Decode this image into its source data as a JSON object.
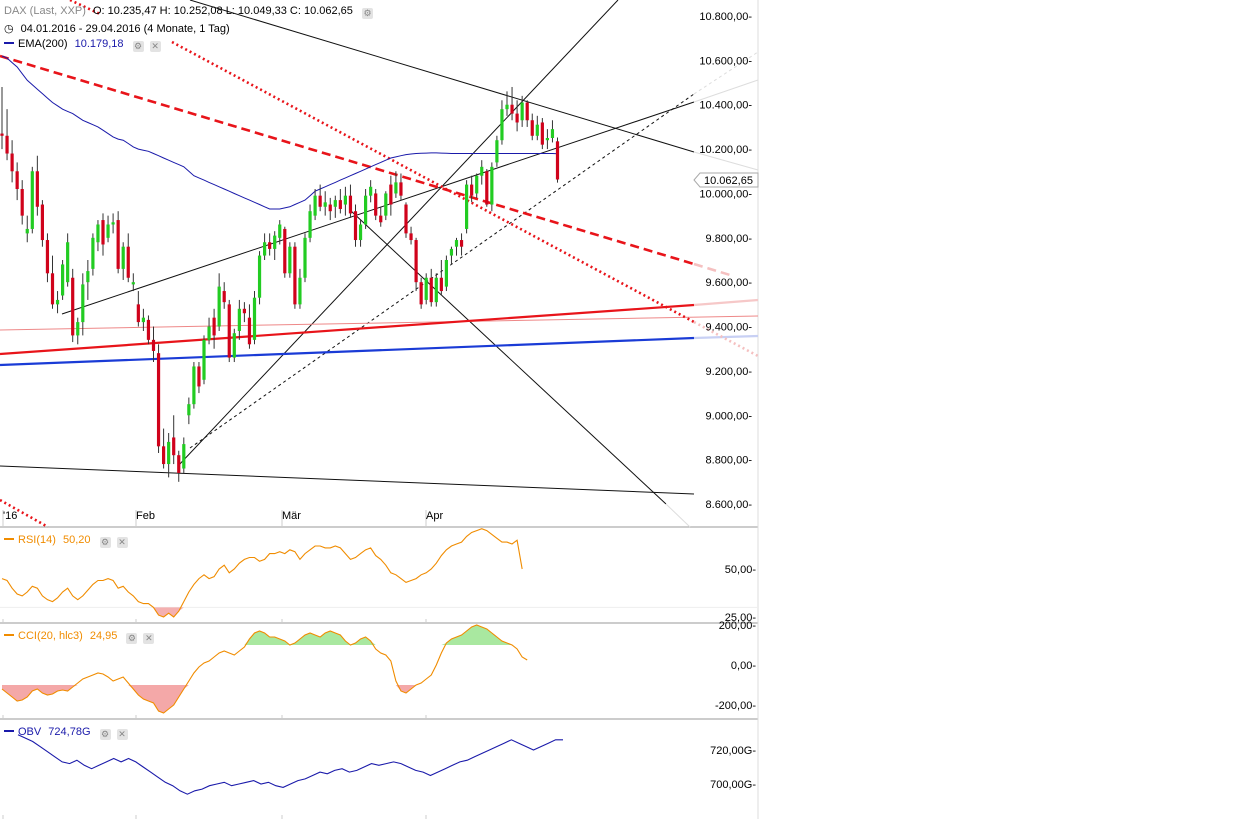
{
  "header": {
    "instrument": "DAX (Last, XXP)",
    "ohlc": "O: 10.235,47  H: 10.252,08  L: 10.049,33  C: 10.062,65",
    "range": "04.01.2016 - 29.04.2016 (4 Monate, 1 Tag)",
    "ema_label": "EMA(200)",
    "ema_value": "10.179,18",
    "last_price_label": "10.062,65"
  },
  "indicators": {
    "rsi": {
      "label": "RSI(14)",
      "value": "50,20"
    },
    "cci": {
      "label": "CCI(20, hlc3)",
      "value": "24,95"
    },
    "obv": {
      "label": "OBV",
      "value": "724,78G"
    }
  },
  "colors": {
    "up": "#22cc22",
    "down": "#d0021b",
    "ema": "#1a1aaa",
    "rsi": "#f08c00",
    "cci": "#f08c00",
    "obv": "#1a1aaa",
    "trend_red": "#e8141a",
    "trend_blue": "#1a3bd6"
  },
  "chart_data": [
    {
      "type": "candlestick",
      "x_ticks": [
        "'16",
        "Feb",
        "Mär",
        "Apr"
      ],
      "y_ticks": [
        "10.800,00",
        "10.600,00",
        "10.400,00",
        "10.200,00",
        "10.000,00",
        "9.800,00",
        "9.600,00",
        "9.400,00",
        "9.200,00",
        "9.000,00",
        "8.800,00",
        "8.600,00"
      ],
      "ylim": [
        8530,
        10870
      ],
      "candles": [
        [
          10270,
          10480,
          10200,
          10260
        ],
        [
          10260,
          10380,
          10150,
          10180
        ],
        [
          10180,
          10240,
          10050,
          10100
        ],
        [
          10100,
          10140,
          9970,
          10020
        ],
        [
          10020,
          10060,
          9860,
          9900
        ],
        [
          9820,
          9900,
          9780,
          9840
        ],
        [
          9840,
          10120,
          9820,
          10100
        ],
        [
          10100,
          10170,
          9900,
          9940
        ],
        [
          9950,
          9970,
          9760,
          9790
        ],
        [
          9790,
          9820,
          9600,
          9640
        ],
        [
          9640,
          9720,
          9480,
          9500
        ],
        [
          9500,
          9560,
          9460,
          9520
        ],
        [
          9540,
          9700,
          9520,
          9680
        ],
        [
          9600,
          9820,
          9580,
          9780
        ],
        [
          9620,
          9660,
          9330,
          9360
        ],
        [
          9360,
          9440,
          9320,
          9420
        ],
        [
          9420,
          9640,
          9360,
          9590
        ],
        [
          9600,
          9700,
          9520,
          9650
        ],
        [
          9660,
          9820,
          9630,
          9800
        ],
        [
          9780,
          9880,
          9740,
          9860
        ],
        [
          9880,
          9910,
          9720,
          9770
        ],
        [
          9800,
          9900,
          9780,
          9860
        ],
        [
          9860,
          9910,
          9820,
          9870
        ],
        [
          9880,
          9920,
          9640,
          9660
        ],
        [
          9660,
          9780,
          9610,
          9760
        ],
        [
          9760,
          9820,
          9600,
          9620
        ],
        [
          9590,
          9640,
          9560,
          9600
        ],
        [
          9500,
          9560,
          9400,
          9420
        ],
        [
          9420,
          9480,
          9380,
          9440
        ],
        [
          9430,
          9450,
          9320,
          9340
        ],
        [
          9340,
          9400,
          9240,
          9290
        ],
        [
          9280,
          9320,
          8830,
          8860
        ],
        [
          8860,
          8940,
          8760,
          8780
        ],
        [
          8780,
          8920,
          8720,
          8880
        ],
        [
          8900,
          9000,
          8780,
          8820
        ],
        [
          8820,
          8840,
          8700,
          8740
        ],
        [
          8760,
          8900,
          8740,
          8870
        ],
        [
          9000,
          9080,
          8960,
          9050
        ],
        [
          9050,
          9240,
          9030,
          9220
        ],
        [
          9220,
          9240,
          9100,
          9130
        ],
        [
          9160,
          9360,
          9140,
          9340
        ],
        [
          9340,
          9440,
          9320,
          9400
        ],
        [
          9440,
          9480,
          9300,
          9360
        ],
        [
          9400,
          9640,
          9380,
          9580
        ],
        [
          9560,
          9600,
          9480,
          9510
        ],
        [
          9500,
          9520,
          9240,
          9260
        ],
        [
          9260,
          9390,
          9240,
          9370
        ],
        [
          9380,
          9520,
          9340,
          9480
        ],
        [
          9480,
          9510,
          9420,
          9460
        ],
        [
          9440,
          9500,
          9300,
          9320
        ],
        [
          9340,
          9560,
          9320,
          9530
        ],
        [
          9530,
          9740,
          9500,
          9720
        ],
        [
          9720,
          9820,
          9700,
          9780
        ],
        [
          9780,
          9820,
          9720,
          9750
        ],
        [
          9750,
          9830,
          9700,
          9810
        ],
        [
          9800,
          9880,
          9770,
          9860
        ],
        [
          9840,
          9850,
          9620,
          9640
        ],
        [
          9640,
          9780,
          9620,
          9760
        ],
        [
          9760,
          9780,
          9480,
          9500
        ],
        [
          9500,
          9660,
          9480,
          9620
        ],
        [
          9620,
          9820,
          9600,
          9800
        ],
        [
          9800,
          9950,
          9780,
          9920
        ],
        [
          9900,
          10020,
          9880,
          9990
        ],
        [
          9990,
          10040,
          9920,
          9940
        ],
        [
          9940,
          10010,
          9900,
          9960
        ],
        [
          9950,
          9980,
          9880,
          9920
        ],
        [
          9940,
          9990,
          9890,
          9970
        ],
        [
          9970,
          10020,
          9910,
          9930
        ],
        [
          9950,
          10030,
          9900,
          9990
        ],
        [
          9990,
          10040,
          9890,
          9910
        ],
        [
          9920,
          9950,
          9760,
          9790
        ],
        [
          9790,
          9880,
          9760,
          9860
        ],
        [
          9860,
          10020,
          9840,
          9990
        ],
        [
          9990,
          10060,
          9960,
          10030
        ],
        [
          10000,
          10020,
          9880,
          9900
        ],
        [
          9900,
          9940,
          9850,
          9870
        ],
        [
          9900,
          10010,
          9880,
          10000
        ],
        [
          10040,
          10080,
          9900,
          9950
        ],
        [
          10000,
          10100,
          9980,
          10050
        ],
        [
          10050,
          10090,
          9970,
          9990
        ],
        [
          9950,
          9960,
          9800,
          9820
        ],
        [
          9820,
          9850,
          9770,
          9790
        ],
        [
          9790,
          9800,
          9560,
          9600
        ],
        [
          9600,
          9620,
          9480,
          9500
        ],
        [
          9520,
          9640,
          9500,
          9620
        ],
        [
          9620,
          9660,
          9490,
          9510
        ],
        [
          9510,
          9640,
          9490,
          9620
        ],
        [
          9620,
          9700,
          9540,
          9560
        ],
        [
          9580,
          9720,
          9560,
          9700
        ],
        [
          9720,
          9760,
          9680,
          9750
        ],
        [
          9760,
          9800,
          9720,
          9790
        ],
        [
          9790,
          9820,
          9720,
          9760
        ],
        [
          9840,
          10060,
          9820,
          10040
        ],
        [
          10040,
          10080,
          9960,
          9990
        ],
        [
          10000,
          10090,
          9980,
          10080
        ],
        [
          10080,
          10150,
          10040,
          10120
        ],
        [
          10100,
          10110,
          9940,
          9950
        ],
        [
          9950,
          10140,
          9920,
          10120
        ],
        [
          10140,
          10260,
          10120,
          10240
        ],
        [
          10240,
          10420,
          10220,
          10380
        ],
        [
          10380,
          10460,
          10350,
          10400
        ],
        [
          10400,
          10480,
          10330,
          10360
        ],
        [
          10360,
          10420,
          10280,
          10320
        ],
        [
          10330,
          10440,
          10300,
          10410
        ],
        [
          10410,
          10420,
          10300,
          10330
        ],
        [
          10330,
          10360,
          10240,
          10260
        ],
        [
          10260,
          10350,
          10240,
          10310
        ],
        [
          10320,
          10340,
          10200,
          10220
        ],
        [
          10240,
          10290,
          10200,
          10250
        ],
        [
          10250,
          10330,
          10230,
          10290
        ],
        [
          10235,
          10252,
          10049,
          10063
        ]
      ],
      "ema200": [
        10620,
        10610,
        10590,
        10570,
        10540,
        10510,
        10490,
        10470,
        10450,
        10430,
        10410,
        10395,
        10380,
        10370,
        10360,
        10345,
        10330,
        10320,
        10310,
        10300,
        10285,
        10270,
        10255,
        10245,
        10240,
        10225,
        10210,
        10200,
        10195,
        10190,
        10180,
        10170,
        10160,
        10150,
        10140,
        10130,
        10120,
        10100,
        10080,
        10070,
        10060,
        10050,
        10040,
        10030,
        10020,
        10010,
        10000,
        9990,
        9980,
        9970,
        9960,
        9950,
        9940,
        9930,
        9930,
        9930,
        9935,
        9940,
        9950,
        9960,
        9970,
        9990,
        10010,
        10020,
        10030,
        10040,
        10050,
        10060,
        10070,
        10080,
        10090,
        10100,
        10110,
        10120,
        10130,
        10140,
        10150,
        10160,
        10165,
        10170,
        10175,
        10178,
        10180,
        10181,
        10182,
        10183,
        10183,
        10182,
        10181,
        10180,
        10180,
        10180,
        10180,
        10180,
        10180,
        10180,
        10180,
        10180,
        10180,
        10180,
        10180,
        10180,
        10180,
        10180,
        10180,
        10180,
        10180,
        10180,
        10180,
        10180,
        10179
      ]
    },
    {
      "type": "line",
      "name": "RSI(14)",
      "y_ticks": [
        "50,00",
        "25,00"
      ],
      "ylim": [
        20,
        80
      ],
      "values": [
        45,
        44,
        40,
        37,
        36,
        38,
        41,
        40,
        36,
        34,
        33,
        35,
        38,
        40,
        36,
        34,
        36,
        39,
        42,
        44,
        44,
        45,
        44,
        40,
        41,
        38,
        36,
        33,
        32,
        32,
        30,
        26,
        25,
        27,
        25,
        28,
        33,
        38,
        42,
        45,
        47,
        45,
        46,
        50,
        52,
        48,
        50,
        53,
        55,
        56,
        56,
        54,
        55,
        58,
        58,
        59,
        58,
        60,
        59,
        55,
        58,
        60,
        62,
        62,
        61,
        61,
        62,
        61,
        58,
        55,
        56,
        58,
        60,
        61,
        57,
        55,
        52,
        48,
        47,
        45,
        43,
        44,
        45,
        47,
        48,
        50,
        53,
        57,
        60,
        62,
        63,
        64,
        67,
        69,
        70,
        71,
        70,
        68,
        66,
        64,
        64,
        63,
        65,
        50
      ]
    },
    {
      "type": "area",
      "name": "CCI(20, hlc3)",
      "y_ticks": [
        "200,00",
        "0,00",
        "-200,00"
      ],
      "ylim": [
        -310,
        230
      ],
      "values": [
        -120,
        -140,
        -160,
        -180,
        -175,
        -160,
        -130,
        -120,
        -140,
        -150,
        -145,
        -130,
        -125,
        -130,
        -110,
        -90,
        -70,
        -60,
        -50,
        -40,
        -45,
        -60,
        -80,
        -70,
        -60,
        -90,
        -120,
        -150,
        -170,
        -180,
        -190,
        -230,
        -240,
        -220,
        -200,
        -160,
        -120,
        -80,
        -40,
        -10,
        10,
        20,
        40,
        60,
        70,
        60,
        50,
        70,
        90,
        130,
        160,
        170,
        160,
        140,
        140,
        130,
        120,
        100,
        110,
        130,
        150,
        160,
        150,
        140,
        160,
        170,
        160,
        150,
        120,
        100,
        110,
        130,
        140,
        120,
        80,
        60,
        50,
        20,
        -80,
        -130,
        -140,
        -120,
        -100,
        -90,
        -70,
        -50,
        0,
        60,
        110,
        130,
        140,
        150,
        170,
        190,
        200,
        190,
        180,
        160,
        140,
        120,
        110,
        100,
        80,
        40,
        25
      ]
    },
    {
      "type": "line",
      "name": "OBV",
      "y_ticks": [
        "720,00G",
        "700,00G"
      ],
      "ylim": [
        690,
        733
      ],
      "values": [
        729,
        727,
        725,
        722,
        719,
        716,
        713,
        712,
        714,
        711,
        709,
        711,
        713,
        715,
        713,
        715,
        713,
        710,
        707,
        704,
        701,
        699,
        696,
        694,
        696,
        697,
        699,
        700,
        701,
        699,
        700,
        701,
        702,
        700,
        701,
        699,
        698,
        700,
        702,
        703,
        705,
        707,
        706,
        708,
        709,
        707,
        708,
        710,
        712,
        711,
        712,
        713,
        712,
        710,
        708,
        707,
        705,
        707,
        709,
        711,
        713,
        714,
        716,
        718,
        720,
        722,
        724,
        726,
        724,
        722,
        720,
        722,
        724,
        726,
        726
      ]
    }
  ]
}
